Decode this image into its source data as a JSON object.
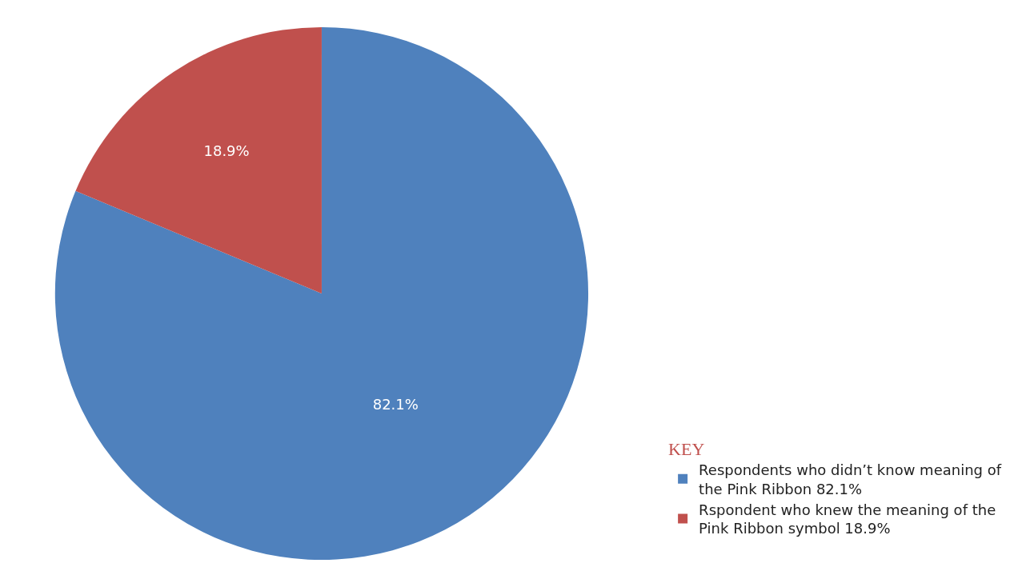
{
  "chart_data": {
    "type": "pie",
    "legend_title": "KEY",
    "categories": [
      "Respondents who didn’t know meaning of the Pink Ribbon 82.1%",
      "Rspondent who knew the meaning of the Pink Ribbon symbol 18.9%"
    ],
    "values": [
      82.1,
      18.9
    ],
    "colors": [
      "#4f81bd",
      "#c0504d"
    ],
    "value_labels": [
      "82.1%",
      "18.9%"
    ],
    "legend": "bottom right"
  }
}
